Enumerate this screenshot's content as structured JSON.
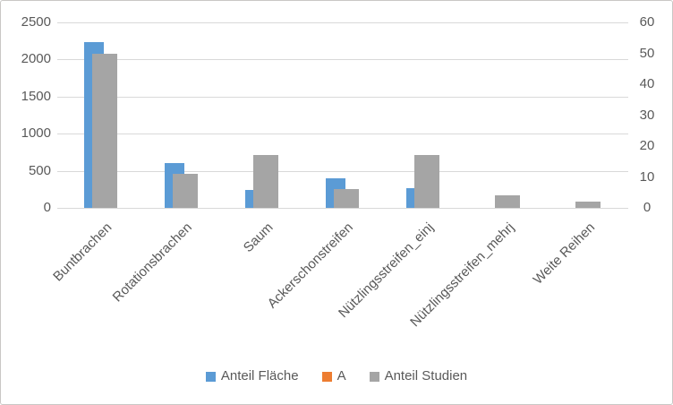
{
  "chart_data": {
    "type": "bar",
    "title": "",
    "categories": [
      "Buntbrachen",
      "Rotationsbrachen",
      "Saum",
      "Ackerschonstreifen",
      "Nützlingsstreifen_einj",
      "Nützlingsstreifen_mehrj",
      "Weite Reihen"
    ],
    "series": [
      {
        "name": "Anteil Fläche",
        "color": "#5b9bd5",
        "axis": "left",
        "values": [
          2230,
          600,
          240,
          400,
          270,
          0,
          0
        ]
      },
      {
        "name": "A",
        "color": "#ed7d31",
        "axis": "right",
        "values": [
          0,
          0,
          0,
          0,
          0,
          0,
          0
        ]
      },
      {
        "name": "Anteil Studien",
        "color": "#a5a5a5",
        "axis": "right",
        "values": [
          50,
          11,
          17,
          6,
          17,
          4,
          2
        ]
      }
    ],
    "left_axis": {
      "min": 0,
      "max": 2500,
      "step": 500,
      "ticks": [
        0,
        500,
        1000,
        1500,
        2000,
        2500
      ]
    },
    "right_axis": {
      "min": 0,
      "max": 60,
      "step": 10,
      "ticks": [
        0,
        10,
        20,
        30,
        40,
        50,
        60
      ]
    },
    "legend": {
      "position": "bottom",
      "items": [
        "Anteil Fläche",
        "A",
        "Anteil Studien"
      ]
    },
    "grid": true,
    "category_label_rotation_deg": 45
  },
  "colors": {
    "text": "#595959",
    "gridline": "#d9d9d9",
    "frame_border": "#c9c7c5",
    "background": "#ffffff",
    "series_blue": "#5b9bd5",
    "series_orange": "#ed7d31",
    "series_gray": "#a5a5a5"
  }
}
